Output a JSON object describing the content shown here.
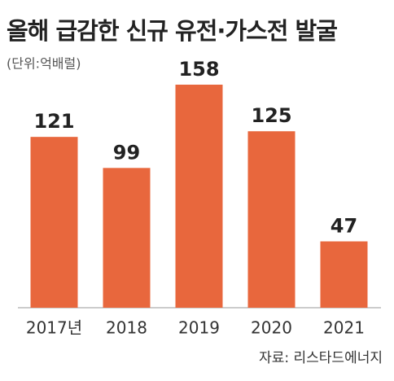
{
  "chart_data": {
    "type": "bar",
    "title": "올해 급감한 신규 유전·가스전 발굴",
    "subtitle": "(단위:억배럴)",
    "categories": [
      "2017년",
      "2018",
      "2019",
      "2020",
      "2021"
    ],
    "values": [
      121,
      99,
      158,
      125,
      47
    ],
    "color": "#e8673d",
    "source": "자료: 리스타드에너지"
  }
}
